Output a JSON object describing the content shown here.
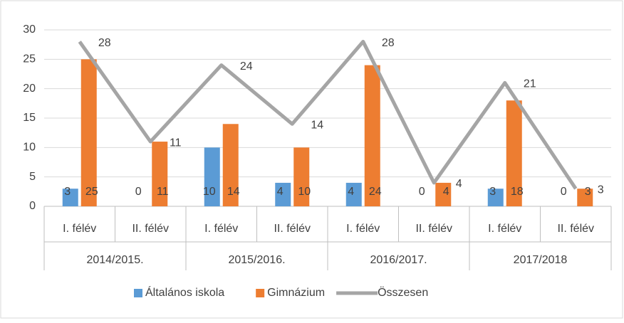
{
  "chart_data": {
    "type": "bar",
    "categories": [
      "I. félév",
      "II. félév",
      "I. félév",
      "II. félév",
      "I. félév",
      "II. félév",
      "I. félév",
      "II. félév"
    ],
    "groups": [
      "2014/2015.",
      "2015/2016.",
      "2016/2017.",
      "2017/2018"
    ],
    "series": [
      {
        "name": "Általános iskola",
        "color": "#5b9bd5",
        "type": "bar",
        "values": [
          3,
          0,
          10,
          4,
          4,
          0,
          3,
          0
        ]
      },
      {
        "name": "Gimnázium",
        "color": "#ed7d31",
        "type": "bar",
        "values": [
          25,
          11,
          14,
          10,
          24,
          4,
          18,
          3
        ]
      },
      {
        "name": "Összesen",
        "color": "#a5a5a5",
        "type": "line",
        "values": [
          28,
          11,
          24,
          14,
          28,
          4,
          21,
          3
        ]
      }
    ],
    "ylim": [
      0,
      30
    ],
    "yticks": [
      0,
      5,
      10,
      15,
      20,
      25,
      30
    ],
    "grid": true,
    "legend": "bottom"
  }
}
